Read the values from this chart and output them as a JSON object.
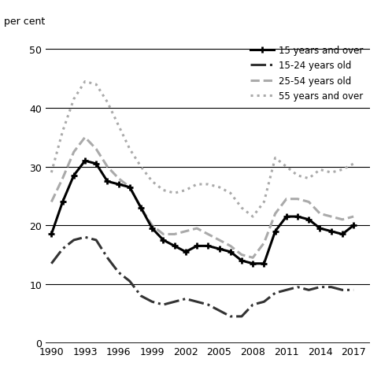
{
  "ylabel": "per cent",
  "xlim": [
    1989.5,
    2018.5
  ],
  "ylim": [
    0,
    52
  ],
  "yticks": [
    0,
    10,
    20,
    30,
    40,
    50
  ],
  "xticks": [
    1990,
    1993,
    1996,
    1999,
    2002,
    2005,
    2008,
    2011,
    2014,
    2017
  ],
  "series": {
    "15_and_over": {
      "label": "15 years and over",
      "color": "#000000",
      "linestyle": "solid",
      "linewidth": 2.2,
      "marker": "+",
      "markersize": 6,
      "markeredgewidth": 2.0,
      "years": [
        1990,
        1991,
        1992,
        1993,
        1994,
        1995,
        1996,
        1997,
        1998,
        1999,
        2000,
        2001,
        2002,
        2003,
        2004,
        2005,
        2006,
        2007,
        2008,
        2009,
        2010,
        2011,
        2012,
        2013,
        2014,
        2015,
        2016,
        2017
      ],
      "values": [
        18.5,
        24.0,
        28.5,
        31.0,
        30.5,
        27.5,
        27.0,
        26.5,
        23.0,
        19.5,
        17.5,
        16.5,
        15.5,
        16.5,
        16.5,
        16.0,
        15.5,
        14.0,
        13.5,
        13.5,
        19.0,
        21.5,
        21.5,
        21.0,
        19.5,
        19.0,
        18.5,
        20.0
      ]
    },
    "15_24": {
      "label": "15-24 years old",
      "color": "#333333",
      "linestyle": "dashdot",
      "linewidth": 2.2,
      "years": [
        1990,
        1991,
        1992,
        1993,
        1994,
        1995,
        1996,
        1997,
        1998,
        1999,
        2000,
        2001,
        2002,
        2003,
        2004,
        2005,
        2006,
        2007,
        2008,
        2009,
        2010,
        2011,
        2012,
        2013,
        2014,
        2015,
        2016,
        2017
      ],
      "values": [
        13.5,
        16.0,
        17.5,
        18.0,
        17.5,
        14.5,
        12.0,
        10.5,
        8.0,
        7.0,
        6.5,
        7.0,
        7.5,
        7.0,
        6.5,
        5.5,
        4.5,
        4.5,
        6.5,
        7.0,
        8.5,
        9.0,
        9.5,
        9.0,
        9.5,
        9.5,
        9.0,
        9.0
      ]
    },
    "25_54": {
      "label": "25-54 years old",
      "color": "#aaaaaa",
      "linestyle": "dashed",
      "linewidth": 2.2,
      "years": [
        1990,
        1991,
        1992,
        1993,
        1994,
        1995,
        1996,
        1997,
        1998,
        1999,
        2000,
        2001,
        2002,
        2003,
        2004,
        2005,
        2006,
        2007,
        2008,
        2009,
        2010,
        2011,
        2012,
        2013,
        2014,
        2015,
        2016,
        2017
      ],
      "values": [
        24.0,
        28.0,
        32.5,
        35.0,
        33.0,
        30.0,
        28.0,
        26.5,
        23.0,
        20.0,
        18.5,
        18.5,
        19.0,
        19.5,
        18.5,
        17.5,
        16.5,
        15.0,
        14.5,
        17.0,
        22.0,
        24.5,
        24.5,
        24.0,
        22.0,
        21.5,
        21.0,
        21.5
      ]
    },
    "55_over": {
      "label": "55 years and over",
      "color": "#aaaaaa",
      "linestyle": "dotted",
      "linewidth": 2.2,
      "years": [
        1990,
        1991,
        1992,
        1993,
        1994,
        1995,
        1996,
        1997,
        1998,
        1999,
        2000,
        2001,
        2002,
        2003,
        2004,
        2005,
        2006,
        2007,
        2008,
        2009,
        2010,
        2011,
        2012,
        2013,
        2014,
        2015,
        2016,
        2017
      ],
      "values": [
        29.0,
        36.0,
        41.5,
        44.5,
        44.0,
        41.0,
        37.0,
        33.0,
        30.0,
        27.5,
        26.0,
        25.5,
        26.0,
        27.0,
        27.0,
        26.5,
        25.5,
        23.0,
        21.5,
        24.0,
        31.5,
        30.0,
        28.5,
        28.0,
        29.5,
        29.0,
        29.5,
        30.5
      ]
    }
  },
  "background_color": "#ffffff",
  "hline_values": [
    10,
    20,
    30,
    40,
    50
  ],
  "hline_color": "#000000",
  "hline_linewidth": 0.8,
  "bottom_line_y": 0,
  "top_line_y": 50
}
